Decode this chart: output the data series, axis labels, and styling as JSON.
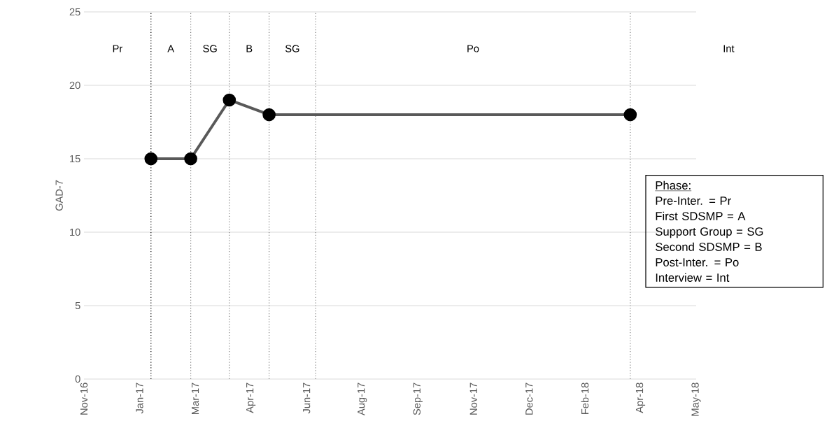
{
  "chart_data": {
    "type": "line",
    "ylabel": "GAD-7",
    "x": [
      "2017-01-28",
      "2017-03-04",
      "2017-04-07",
      "2017-05-12",
      "2018-03-26"
    ],
    "series": [
      {
        "color": "#595959",
        "values": [
          15,
          15,
          19,
          18,
          18
        ]
      }
    ],
    "marker": "circle",
    "line_style": "solid",
    "xlim": [
      "2016-11-30",
      "2018-05-23"
    ],
    "xticks": [
      {
        "value": "2016-11-30",
        "label": "Nov-16"
      },
      {
        "value": "2017-01-18",
        "label": "Jan-17"
      },
      {
        "value": "2017-03-08",
        "label": "Mar-17"
      },
      {
        "value": "2017-04-26",
        "label": "Apr-17"
      },
      {
        "value": "2017-06-14",
        "label": "Jun-17"
      },
      {
        "value": "2017-08-02",
        "label": "Aug-17"
      },
      {
        "value": "2017-09-20",
        "label": "Sep-17"
      },
      {
        "value": "2017-11-08",
        "label": "Nov-17"
      },
      {
        "value": "2017-12-27",
        "label": "Dec-17"
      },
      {
        "value": "2018-02-14",
        "label": "Feb-18"
      },
      {
        "value": "2018-04-04",
        "label": "Apr-18"
      },
      {
        "value": "2018-05-23",
        "label": "May-18"
      }
    ],
    "ylim": [
      0,
      25
    ],
    "yticks": [
      0,
      5,
      10,
      15,
      20,
      25
    ],
    "grid": "y",
    "ref_lines": [
      {
        "axis": "x",
        "value": "2017-01-28",
        "color": "#000000",
        "line_style": "dotted"
      },
      {
        "axis": "x",
        "value": "2017-03-04",
        "color": "#7f7f7f",
        "line_style": "dotted"
      },
      {
        "axis": "x",
        "value": "2017-04-07",
        "color": "#7f7f7f",
        "line_style": "dotted"
      },
      {
        "axis": "x",
        "value": "2017-05-12",
        "color": "#7f7f7f",
        "line_style": "dotted"
      },
      {
        "axis": "x",
        "value": "2017-06-22",
        "color": "#7f7f7f",
        "line_style": "dotted"
      },
      {
        "axis": "x",
        "value": "2018-03-26",
        "color": "#7f7f7f",
        "line_style": "dotted"
      }
    ],
    "annotations": [
      "Pr",
      "A",
      "SG",
      "B",
      "SG",
      "Po",
      "Int",
      "Phase:",
      "Pre-Inter. = Pr",
      "First SDSMP = A",
      "Support Group = SG",
      "Second SDSMP = B",
      "Post-Inter. = Po",
      "Interview = Int"
    ]
  }
}
